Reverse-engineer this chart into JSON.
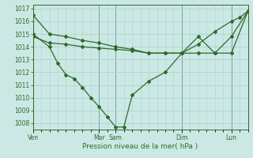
{
  "xlabel": "Pression niveau de la mer( hPa )",
  "ylim": [
    1007.5,
    1017.3
  ],
  "yticks": [
    1008,
    1009,
    1010,
    1011,
    1012,
    1013,
    1014,
    1015,
    1016,
    1017
  ],
  "day_labels": [
    "Ven",
    "Mar",
    "Sam",
    "Dim",
    "Lun"
  ],
  "day_pos_hrs": [
    0,
    48,
    60,
    108,
    144
  ],
  "xlim_max": 156,
  "background_color": "#cce8e4",
  "grid_color_minor": "#aad4ce",
  "grid_color_major_x": "#7aaba6",
  "line_color": "#2d6b2d",
  "series": [
    {
      "x": [
        0,
        12,
        24,
        36,
        48,
        60,
        72,
        84,
        96,
        108,
        120,
        132,
        144,
        150,
        156
      ],
      "y": [
        1016.5,
        1015.0,
        1014.8,
        1014.5,
        1014.3,
        1014.0,
        1013.8,
        1013.5,
        1013.5,
        1013.5,
        1014.2,
        1015.2,
        1016.0,
        1016.3,
        1016.8
      ]
    },
    {
      "x": [
        0,
        12,
        18,
        24,
        30,
        36,
        42,
        48,
        54,
        60,
        66,
        72,
        84,
        96,
        108,
        120,
        132,
        144,
        156
      ],
      "y": [
        1015.0,
        1014.0,
        1012.7,
        1011.8,
        1011.5,
        1010.8,
        1010.0,
        1009.3,
        1008.5,
        1007.7,
        1007.7,
        1010.2,
        1011.3,
        1012.0,
        1013.5,
        1014.8,
        1013.5,
        1014.8,
        1016.8
      ]
    },
    {
      "x": [
        0,
        12,
        24,
        36,
        48,
        60,
        72,
        84,
        96,
        108,
        120,
        132,
        144,
        156
      ],
      "y": [
        1014.8,
        1014.3,
        1014.2,
        1014.0,
        1013.9,
        1013.8,
        1013.7,
        1013.5,
        1013.5,
        1013.5,
        1013.5,
        1013.5,
        1013.5,
        1016.8
      ]
    }
  ]
}
